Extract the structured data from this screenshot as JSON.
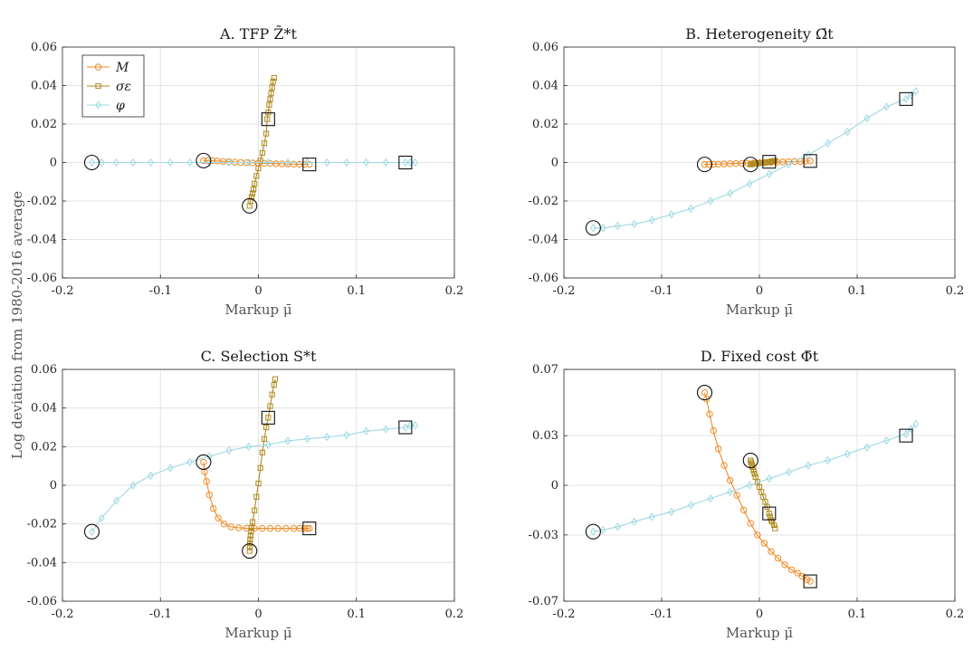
{
  "figure": {
    "shared_ylabel": "Log deviation from 1980-2016 average"
  },
  "colors": {
    "M": "#EE8B26",
    "sigma": "#B08A1E",
    "phi": "#9FD8E3",
    "grid": "#E3E3E3",
    "axis": "#262626"
  },
  "legend": [
    "M",
    "σε",
    "φ"
  ],
  "chart_data": [
    {
      "type": "line",
      "title": "A. TFP Z̄*t",
      "xlabel": "Markup μ̄",
      "ylabel": "",
      "xlim": [
        -0.2,
        0.2
      ],
      "ylim": [
        -0.06,
        0.06
      ],
      "xticks": [
        -0.2,
        -0.1,
        0,
        0.1,
        0.2
      ],
      "xtick_labels": [
        "-0.2",
        "-0.1",
        "0",
        "0.1",
        "0.2"
      ],
      "yticks": [
        -0.06,
        -0.04,
        -0.02,
        0,
        0.02,
        0.04,
        0.06
      ],
      "ytick_labels": [
        "-0.06",
        "-0.04",
        "-0.02",
        "0",
        "0.02",
        "0.04",
        "0.06"
      ],
      "grid": true,
      "legend": "top-left",
      "series": [
        {
          "name": "M",
          "marker": "circle",
          "x": [
            -0.056,
            -0.052,
            -0.047,
            -0.042,
            -0.036,
            -0.03,
            -0.024,
            -0.018,
            -0.012,
            -0.006,
            0,
            0.006,
            0.012,
            0.018,
            0.024,
            0.03,
            0.036,
            0.042,
            0.047,
            0.052
          ],
          "y": [
            0.001,
            0.001,
            0.001,
            0.0008,
            0.0006,
            0.0004,
            0.0002,
            0,
            -0.0001,
            -0.0002,
            -0.0003,
            -0.0004,
            -0.0005,
            -0.0006,
            -0.0007,
            -0.0008,
            -0.0008,
            -0.0009,
            -0.0009,
            -0.001
          ]
        },
        {
          "name": "σε",
          "marker": "square",
          "x": [
            -0.009,
            -0.008,
            -0.007,
            -0.006,
            -0.005,
            -0.004,
            -0.002,
            0,
            0.002,
            0.004,
            0.006,
            0.008,
            0.009,
            0.01,
            0.011,
            0.012,
            0.013,
            0.014,
            0.015,
            0.016
          ],
          "y": [
            -0.0225,
            -0.02,
            -0.018,
            -0.016,
            -0.014,
            -0.011,
            -0.007,
            -0.003,
            0.001,
            0.005,
            0.01,
            0.015,
            0.0225,
            0.026,
            0.03,
            0.033,
            0.036,
            0.039,
            0.042,
            0.044
          ]
        },
        {
          "name": "φ",
          "marker": "diamond",
          "x": [
            -0.17,
            -0.16,
            -0.145,
            -0.128,
            -0.11,
            -0.09,
            -0.07,
            -0.05,
            -0.03,
            -0.01,
            0.01,
            0.03,
            0.05,
            0.07,
            0.09,
            0.11,
            0.13,
            0.15,
            0.155,
            0.16
          ],
          "y": [
            0,
            0,
            0,
            0,
            0,
            0,
            0,
            0,
            0,
            0,
            0,
            0,
            0,
            0,
            0,
            0,
            0,
            0,
            0,
            0
          ]
        }
      ],
      "start_points": [
        [
          -0.17,
          0
        ],
        [
          -0.056,
          0.001
        ],
        [
          -0.009,
          -0.0225
        ]
      ],
      "end_points": [
        [
          0.052,
          -0.001
        ],
        [
          0.15,
          0
        ],
        [
          0.01,
          0.0225
        ]
      ]
    },
    {
      "type": "line",
      "title": "B. Heterogeneity Ω̄t",
      "xlabel": "Markup μ̄",
      "ylabel": "",
      "xlim": [
        -0.2,
        0.2
      ],
      "ylim": [
        -0.06,
        0.06
      ],
      "xticks": [
        -0.2,
        -0.1,
        0,
        0.1,
        0.2
      ],
      "xtick_labels": [
        "-0.2",
        "-0.1",
        "0",
        "0.1",
        "0.2"
      ],
      "yticks": [
        -0.06,
        -0.04,
        -0.02,
        0,
        0.02,
        0.04,
        0.06
      ],
      "ytick_labels": [
        "-0.06",
        "-0.04",
        "-0.02",
        "0",
        "0.02",
        "0.04",
        "0.06"
      ],
      "grid": true,
      "series": [
        {
          "name": "M",
          "marker": "circle",
          "x": [
            -0.056,
            -0.052,
            -0.047,
            -0.042,
            -0.036,
            -0.03,
            -0.024,
            -0.018,
            -0.012,
            -0.006,
            0,
            0.006,
            0.012,
            0.018,
            0.024,
            0.03,
            0.036,
            0.042,
            0.047,
            0.052
          ],
          "y": [
            -0.001,
            -0.001,
            -0.0009,
            -0.0008,
            -0.0007,
            -0.0006,
            -0.0005,
            -0.0004,
            -0.0003,
            -0.0002,
            -0.0001,
            0,
            0.0001,
            0.0002,
            0.0003,
            0.0004,
            0.0005,
            0.0006,
            0.0007,
            0.0008
          ]
        },
        {
          "name": "σε",
          "marker": "square",
          "x": [
            -0.009,
            -0.008,
            -0.007,
            -0.006,
            -0.005,
            -0.004,
            -0.002,
            0,
            0.002,
            0.004,
            0.006,
            0.008,
            0.009,
            0.01,
            0.011,
            0.012,
            0.013,
            0.014,
            0.015,
            0.016
          ],
          "y": [
            -0.001,
            -0.0009,
            -0.0008,
            -0.0007,
            -0.0006,
            -0.0005,
            -0.0004,
            -0.0003,
            -0.0002,
            -0.0001,
            0,
            0.0001,
            0.0002,
            0.0003,
            0.0004,
            0.0005,
            0.0006,
            0.0007,
            0.0008,
            0.0009
          ]
        },
        {
          "name": "φ",
          "marker": "diamond",
          "x": [
            -0.17,
            -0.16,
            -0.145,
            -0.128,
            -0.11,
            -0.09,
            -0.07,
            -0.05,
            -0.03,
            -0.01,
            0.01,
            0.03,
            0.05,
            0.07,
            0.09,
            0.11,
            0.13,
            0.15,
            0.155,
            0.16
          ],
          "y": [
            -0.034,
            -0.034,
            -0.033,
            -0.032,
            -0.03,
            -0.027,
            -0.024,
            -0.02,
            -0.016,
            -0.011,
            -0.006,
            -0.001,
            0.004,
            0.01,
            0.016,
            0.023,
            0.029,
            0.033,
            0.035,
            0.037
          ]
        }
      ],
      "start_points": [
        [
          -0.17,
          -0.034
        ],
        [
          -0.056,
          -0.001
        ],
        [
          -0.009,
          -0.001
        ]
      ],
      "end_points": [
        [
          0.052,
          0.0008
        ],
        [
          0.15,
          0.033
        ],
        [
          0.01,
          0.0004
        ]
      ]
    },
    {
      "type": "line",
      "title": "C. Selection S*t",
      "xlabel": "Markup μ̄",
      "ylabel": "",
      "xlim": [
        -0.2,
        0.2
      ],
      "ylim": [
        -0.06,
        0.06
      ],
      "xticks": [
        -0.2,
        -0.1,
        0,
        0.1,
        0.2
      ],
      "xtick_labels": [
        "-0.2",
        "-0.1",
        "0",
        "0.1",
        "0.2"
      ],
      "yticks": [
        -0.06,
        -0.04,
        -0.02,
        0,
        0.02,
        0.04,
        0.06
      ],
      "ytick_labels": [
        "-0.06",
        "-0.04",
        "-0.02",
        "0",
        "0.02",
        "0.04",
        "0.06"
      ],
      "grid": true,
      "series": [
        {
          "name": "M",
          "marker": "circle",
          "x": [
            -0.056,
            -0.055,
            -0.053,
            -0.05,
            -0.046,
            -0.041,
            -0.035,
            -0.028,
            -0.02,
            -0.012,
            -0.004,
            0.004,
            0.012,
            0.02,
            0.028,
            0.036,
            0.042,
            0.047,
            0.05,
            0.052
          ],
          "y": [
            0.012,
            0.007,
            0.002,
            -0.005,
            -0.012,
            -0.017,
            -0.02,
            -0.0215,
            -0.022,
            -0.0222,
            -0.0223,
            -0.0223,
            -0.0223,
            -0.0223,
            -0.0223,
            -0.0223,
            -0.0223,
            -0.0223,
            -0.0223,
            -0.0223
          ]
        },
        {
          "name": "σε",
          "marker": "square",
          "x": [
            -0.009,
            -0.0088,
            -0.0086,
            -0.0084,
            -0.008,
            -0.0075,
            -0.007,
            -0.006,
            -0.004,
            -0.002,
            0,
            0.002,
            0.004,
            0.006,
            0.008,
            0.01,
            0.012,
            0.014,
            0.016,
            0.017
          ],
          "y": [
            -0.034,
            -0.032,
            -0.03,
            -0.028,
            -0.026,
            -0.024,
            -0.022,
            -0.019,
            -0.013,
            -0.006,
            0.001,
            0.009,
            0.017,
            0.024,
            0.03,
            0.035,
            0.041,
            0.047,
            0.052,
            0.055
          ]
        },
        {
          "name": "φ",
          "marker": "diamond",
          "x": [
            -0.17,
            -0.16,
            -0.145,
            -0.128,
            -0.11,
            -0.09,
            -0.07,
            -0.05,
            -0.03,
            -0.01,
            0.01,
            0.03,
            0.05,
            0.07,
            0.09,
            0.11,
            0.13,
            0.15,
            0.155,
            0.16
          ],
          "y": [
            -0.024,
            -0.017,
            -0.008,
            0,
            0.005,
            0.009,
            0.012,
            0.015,
            0.018,
            0.02,
            0.021,
            0.023,
            0.024,
            0.025,
            0.026,
            0.028,
            0.029,
            0.03,
            0.031,
            0.031
          ]
        }
      ],
      "start_points": [
        [
          -0.17,
          -0.024
        ],
        [
          -0.056,
          0.012
        ],
        [
          -0.009,
          -0.034
        ]
      ],
      "end_points": [
        [
          0.052,
          -0.0223
        ],
        [
          0.15,
          0.03
        ],
        [
          0.01,
          0.035
        ]
      ]
    },
    {
      "type": "line",
      "title": "D. Fixed cost Φ̄t",
      "xlabel": "Markup μ̄",
      "ylabel": "",
      "xlim": [
        -0.2,
        0.2
      ],
      "ylim": [
        -0.07,
        0.07
      ],
      "xticks": [
        -0.2,
        -0.1,
        0,
        0.1,
        0.2
      ],
      "xtick_labels": [
        "-0.2",
        "-0.1",
        "0",
        "0.1",
        "0.2"
      ],
      "yticks": [
        -0.07,
        -0.03,
        0,
        0.03,
        0.07
      ],
      "ytick_labels": [
        "-0.07",
        "-0.03",
        "0",
        "0.03",
        "0.07"
      ],
      "grid": true,
      "series": [
        {
          "name": "M",
          "marker": "circle",
          "x": [
            -0.056,
            -0.054,
            -0.051,
            -0.047,
            -0.042,
            -0.036,
            -0.03,
            -0.023,
            -0.016,
            -0.009,
            -0.002,
            0.005,
            0.012,
            0.019,
            0.026,
            0.033,
            0.039,
            0.044,
            0.049,
            0.052
          ],
          "y": [
            0.056,
            0.052,
            0.043,
            0.033,
            0.022,
            0.012,
            0.003,
            -0.006,
            -0.015,
            -0.023,
            -0.03,
            -0.035,
            -0.04,
            -0.044,
            -0.048,
            -0.051,
            -0.053,
            -0.055,
            -0.057,
            -0.058
          ]
        },
        {
          "name": "σε",
          "marker": "square",
          "x": [
            -0.009,
            -0.0085,
            -0.008,
            -0.0075,
            -0.007,
            -0.006,
            -0.005,
            -0.004,
            -0.002,
            0,
            0.002,
            0.004,
            0.006,
            0.008,
            0.01,
            0.011,
            0.012,
            0.013,
            0.015,
            0.016
          ],
          "y": [
            0.015,
            0.014,
            0.013,
            0.012,
            0.011,
            0.009,
            0.007,
            0.005,
            0.002,
            -0.001,
            -0.004,
            -0.007,
            -0.01,
            -0.013,
            -0.017,
            -0.019,
            -0.021,
            -0.022,
            -0.024,
            -0.026
          ]
        },
        {
          "name": "φ",
          "marker": "diamond",
          "x": [
            -0.17,
            -0.16,
            -0.145,
            -0.128,
            -0.11,
            -0.09,
            -0.07,
            -0.05,
            -0.03,
            -0.01,
            0.01,
            0.03,
            0.05,
            0.07,
            0.09,
            0.11,
            0.13,
            0.15,
            0.155,
            0.16
          ],
          "y": [
            -0.028,
            -0.027,
            -0.025,
            -0.022,
            -0.019,
            -0.016,
            -0.012,
            -0.008,
            -0.004,
            0,
            0.004,
            0.008,
            0.012,
            0.015,
            0.019,
            0.023,
            0.027,
            0.031,
            0.034,
            0.037
          ]
        }
      ],
      "start_points": [
        [
          -0.17,
          -0.028
        ],
        [
          -0.056,
          0.056
        ],
        [
          -0.009,
          0.015
        ]
      ],
      "end_points": [
        [
          0.052,
          -0.058
        ],
        [
          0.15,
          0.03
        ],
        [
          0.01,
          -0.017
        ]
      ]
    }
  ]
}
